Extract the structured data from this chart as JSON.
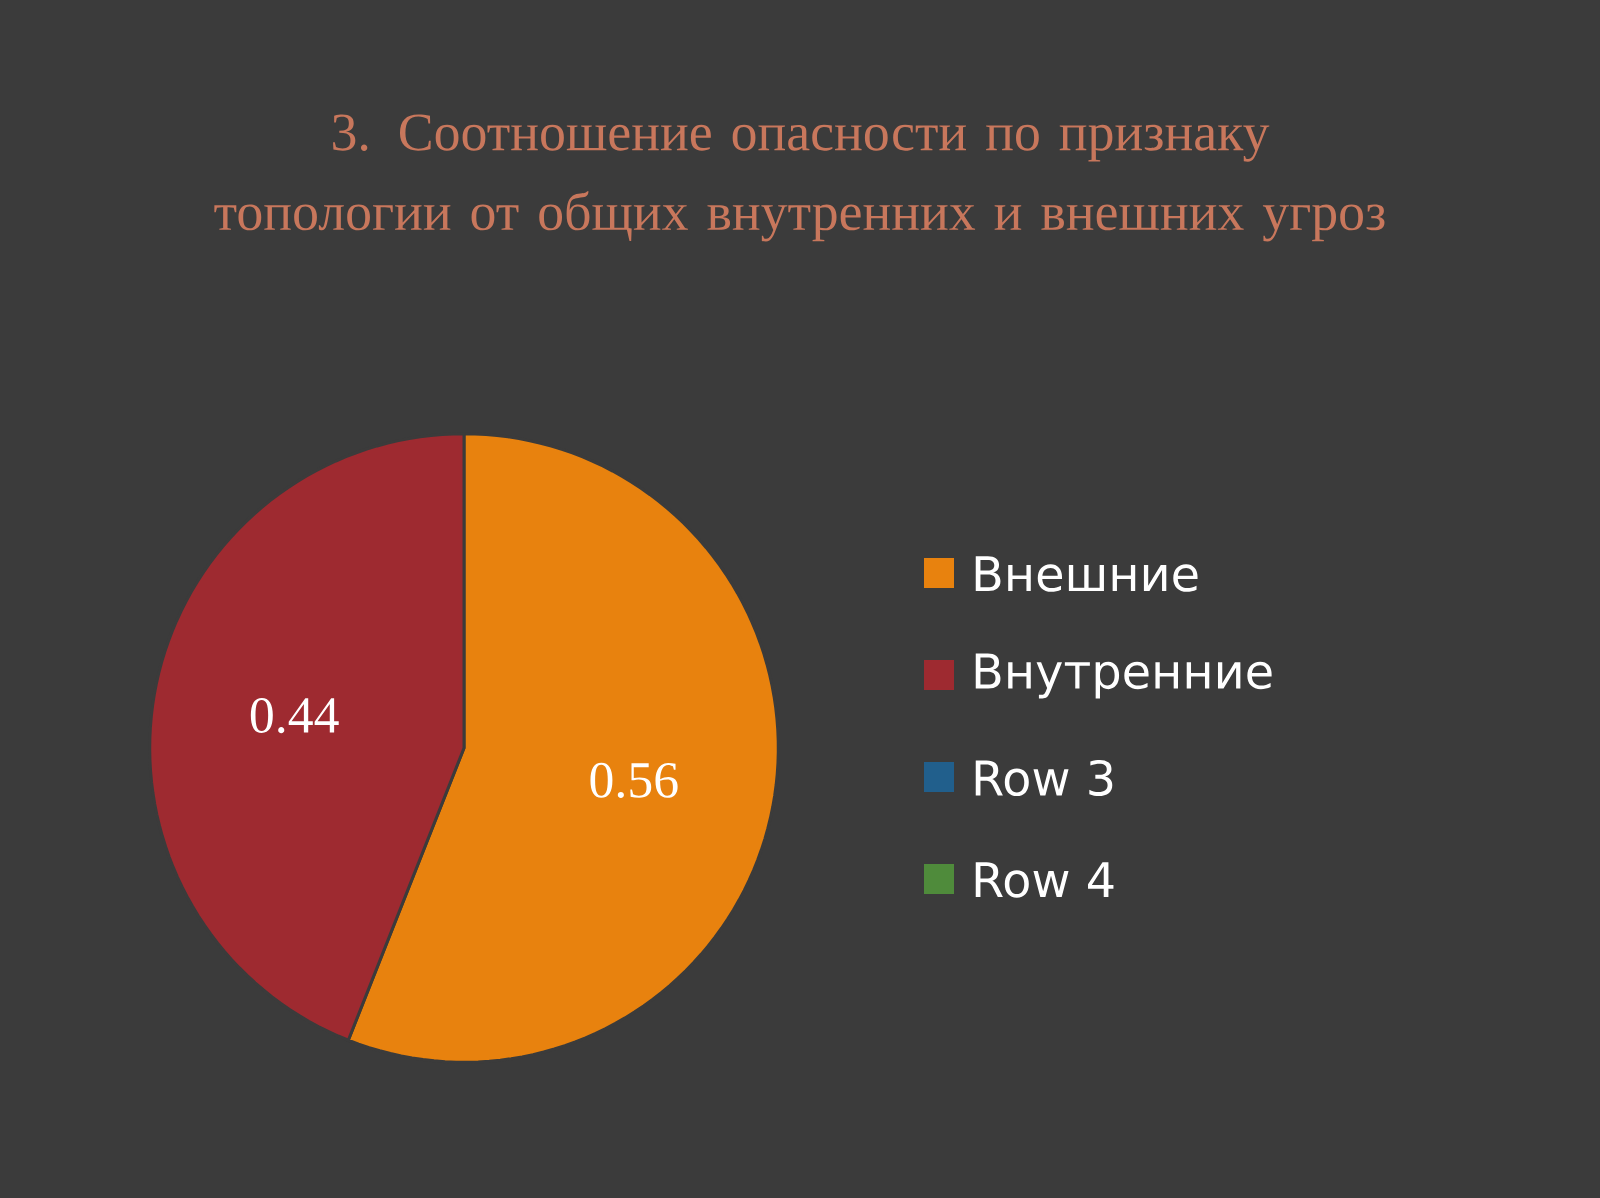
{
  "chart_data": {
    "type": "pie",
    "title": "3. Соотношение опасности по признаку топологии от общих внутренних и внешних угроз",
    "categories": [
      "Внешние",
      "Внутренние",
      "Row 3",
      "Row 4"
    ],
    "values": [
      0.56,
      0.44,
      null,
      null
    ],
    "colors": [
      "#e8820e",
      "#9e2a30",
      "#215f8c",
      "#4f8b3b"
    ],
    "data_labels": true,
    "legend": "right"
  }
}
